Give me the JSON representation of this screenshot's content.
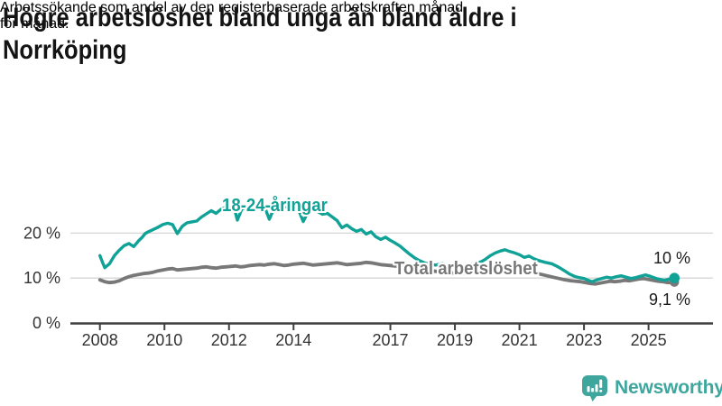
{
  "header": {
    "title": "Högre arbetslöshet bland unga än bland äldre i Norrköping",
    "title_lines": [
      "Högre arbetslöshet bland unga än bland äldre i",
      "Norrköping"
    ],
    "subtitle": "Arbetssökande som andel av den registerbaserade arbetskraften månad för månad.",
    "subtitle_lines": [
      "Arbetssökande som andel av den registerbaserade arbetskraften månad",
      "för månad."
    ]
  },
  "chart_data": {
    "type": "line",
    "title": "Högre arbetslöshet bland unga än bland äldre i Norrköping",
    "subtitle": "Arbetssökande som andel av den registerbaserade arbetskraften månad för månad.",
    "xlabel": "",
    "ylabel": "",
    "xlim": [
      2007.9,
      2026.1
    ],
    "ylim": [
      0,
      27
    ],
    "grid": "horizontal",
    "legend_position": "inline-labels",
    "colors": {
      "young": "#10a296",
      "total": "#787878",
      "grid": "#d6d6d6",
      "axis": "#3f3f3f",
      "tick_text": "#333333"
    },
    "y_ticks": [
      {
        "label": "0 %",
        "value": 0
      },
      {
        "label": "10 %",
        "value": 10
      },
      {
        "label": "20 %",
        "value": 20
      }
    ],
    "x_ticks": [
      {
        "label": "2008",
        "year": 2008
      },
      {
        "label": "2010",
        "year": 2010
      },
      {
        "label": "2012",
        "year": 2012
      },
      {
        "label": "2014",
        "year": 2014
      },
      {
        "label": "2017",
        "year": 2017
      },
      {
        "label": "2019",
        "year": 2019
      },
      {
        "label": "2021",
        "year": 2021
      },
      {
        "label": "2023",
        "year": 2023
      },
      {
        "label": "2025",
        "year": 2025
      }
    ],
    "series_labels": {
      "young": "18-24-åringar",
      "total": "Total arbetslöshet"
    },
    "end_labels": {
      "young": "10 %",
      "total": "9,1 %"
    },
    "end_values": {
      "young": 10.0,
      "total": 9.1
    },
    "series": [
      {
        "key": "total",
        "name": "Total arbetslöshet",
        "color": "#787878",
        "width": 3.8,
        "dot_radius": 5.2,
        "points": [
          [
            2008.0,
            9.6
          ],
          [
            2008.15,
            9.2
          ],
          [
            2008.3,
            9.0
          ],
          [
            2008.45,
            9.1
          ],
          [
            2008.6,
            9.4
          ],
          [
            2008.75,
            9.9
          ],
          [
            2008.9,
            10.3
          ],
          [
            2009.05,
            10.6
          ],
          [
            2009.2,
            10.8
          ],
          [
            2009.35,
            11.0
          ],
          [
            2009.5,
            11.1
          ],
          [
            2009.65,
            11.3
          ],
          [
            2009.8,
            11.6
          ],
          [
            2009.95,
            11.8
          ],
          [
            2010.1,
            12.0
          ],
          [
            2010.25,
            12.1
          ],
          [
            2010.4,
            11.8
          ],
          [
            2010.55,
            11.9
          ],
          [
            2010.7,
            12.0
          ],
          [
            2010.85,
            12.1
          ],
          [
            2011.0,
            12.2
          ],
          [
            2011.15,
            12.4
          ],
          [
            2011.3,
            12.5
          ],
          [
            2011.45,
            12.3
          ],
          [
            2011.6,
            12.2
          ],
          [
            2011.75,
            12.4
          ],
          [
            2011.9,
            12.5
          ],
          [
            2012.05,
            12.6
          ],
          [
            2012.2,
            12.7
          ],
          [
            2012.35,
            12.5
          ],
          [
            2012.5,
            12.6
          ],
          [
            2012.65,
            12.8
          ],
          [
            2012.8,
            12.9
          ],
          [
            2012.95,
            13.0
          ],
          [
            2013.1,
            12.9
          ],
          [
            2013.25,
            13.1
          ],
          [
            2013.4,
            13.2
          ],
          [
            2013.55,
            13.0
          ],
          [
            2013.7,
            12.8
          ],
          [
            2013.85,
            12.9
          ],
          [
            2014.0,
            13.1
          ],
          [
            2014.15,
            13.2
          ],
          [
            2014.3,
            13.3
          ],
          [
            2014.45,
            13.1
          ],
          [
            2014.6,
            12.9
          ],
          [
            2014.75,
            13.0
          ],
          [
            2014.9,
            13.1
          ],
          [
            2015.05,
            13.2
          ],
          [
            2015.2,
            13.3
          ],
          [
            2015.35,
            13.4
          ],
          [
            2015.5,
            13.2
          ],
          [
            2015.65,
            13.0
          ],
          [
            2015.8,
            13.1
          ],
          [
            2015.95,
            13.2
          ],
          [
            2016.1,
            13.3
          ],
          [
            2016.25,
            13.5
          ],
          [
            2016.4,
            13.4
          ],
          [
            2016.55,
            13.2
          ],
          [
            2016.7,
            13.0
          ],
          [
            2016.85,
            12.9
          ],
          [
            2017.0,
            12.8
          ],
          [
            2017.15,
            12.7
          ],
          [
            2017.4,
            12.5
          ],
          [
            2017.7,
            12.2
          ],
          [
            2018.0,
            11.8
          ],
          [
            2018.4,
            11.5
          ],
          [
            2018.8,
            11.2
          ],
          [
            2019.2,
            11.0
          ],
          [
            2019.6,
            11.1
          ],
          [
            2020.0,
            11.8
          ],
          [
            2020.3,
            12.2
          ],
          [
            2020.6,
            12.4
          ],
          [
            2020.9,
            12.1
          ],
          [
            2021.2,
            11.6
          ],
          [
            2021.5,
            11.1
          ],
          [
            2021.8,
            10.6
          ],
          [
            2022.1,
            10.1
          ],
          [
            2022.35,
            9.7
          ],
          [
            2022.6,
            9.4
          ],
          [
            2022.75,
            9.3
          ],
          [
            2022.9,
            9.2
          ],
          [
            2023.05,
            9.0
          ],
          [
            2023.2,
            8.8
          ],
          [
            2023.35,
            8.7
          ],
          [
            2023.5,
            8.9
          ],
          [
            2023.65,
            9.1
          ],
          [
            2023.8,
            9.3
          ],
          [
            2023.95,
            9.2
          ],
          [
            2024.1,
            9.3
          ],
          [
            2024.25,
            9.5
          ],
          [
            2024.4,
            9.4
          ],
          [
            2024.55,
            9.6
          ],
          [
            2024.7,
            9.8
          ],
          [
            2024.85,
            9.9
          ],
          [
            2025.0,
            9.7
          ],
          [
            2025.15,
            9.5
          ],
          [
            2025.3,
            9.3
          ],
          [
            2025.45,
            9.2
          ],
          [
            2025.6,
            9.0
          ],
          [
            2025.7,
            9.0
          ],
          [
            2025.8,
            9.1
          ]
        ]
      },
      {
        "key": "young",
        "name": "18-24-åringar",
        "color": "#10a296",
        "width": 3.4,
        "dot_radius": 5.8,
        "points": [
          [
            2008.0,
            15.0
          ],
          [
            2008.08,
            13.5
          ],
          [
            2008.15,
            12.3
          ],
          [
            2008.3,
            13.2
          ],
          [
            2008.45,
            15.0
          ],
          [
            2008.6,
            16.2
          ],
          [
            2008.75,
            17.2
          ],
          [
            2008.9,
            17.7
          ],
          [
            2009.05,
            17.0
          ],
          [
            2009.2,
            18.3
          ],
          [
            2009.3,
            19.0
          ],
          [
            2009.4,
            19.9
          ],
          [
            2009.5,
            20.3
          ],
          [
            2009.65,
            20.8
          ],
          [
            2009.8,
            21.3
          ],
          [
            2009.95,
            21.9
          ],
          [
            2010.1,
            22.2
          ],
          [
            2010.25,
            21.9
          ],
          [
            2010.4,
            19.9
          ],
          [
            2010.55,
            21.5
          ],
          [
            2010.7,
            22.3
          ],
          [
            2010.85,
            22.5
          ],
          [
            2011.0,
            22.7
          ],
          [
            2011.15,
            23.6
          ],
          [
            2011.3,
            24.3
          ],
          [
            2011.45,
            25.0
          ],
          [
            2011.6,
            24.4
          ],
          [
            2011.75,
            25.3
          ],
          [
            2011.9,
            25.8
          ],
          [
            2012.05,
            25.5
          ],
          [
            2012.15,
            25.9
          ],
          [
            2012.26,
            22.9
          ],
          [
            2012.4,
            25.4
          ],
          [
            2012.55,
            25.8
          ],
          [
            2012.7,
            26.2
          ],
          [
            2012.85,
            25.8
          ],
          [
            2013.0,
            26.0
          ],
          [
            2013.12,
            25.5
          ],
          [
            2013.25,
            23.1
          ],
          [
            2013.4,
            25.6
          ],
          [
            2013.55,
            26.3
          ],
          [
            2013.7,
            26.0
          ],
          [
            2013.85,
            25.7
          ],
          [
            2014.0,
            25.9
          ],
          [
            2014.15,
            25.3
          ],
          [
            2014.3,
            22.6
          ],
          [
            2014.45,
            24.8
          ],
          [
            2014.6,
            25.2
          ],
          [
            2014.75,
            24.8
          ],
          [
            2014.9,
            24.2
          ],
          [
            2015.05,
            24.4
          ],
          [
            2015.2,
            23.6
          ],
          [
            2015.35,
            22.8
          ],
          [
            2015.5,
            21.2
          ],
          [
            2015.65,
            21.8
          ],
          [
            2015.8,
            21.0
          ],
          [
            2015.95,
            20.4
          ],
          [
            2016.1,
            20.8
          ],
          [
            2016.25,
            19.8
          ],
          [
            2016.4,
            20.3
          ],
          [
            2016.55,
            19.2
          ],
          [
            2016.7,
            18.6
          ],
          [
            2016.85,
            19.1
          ],
          [
            2017.0,
            18.4
          ],
          [
            2017.15,
            17.8
          ],
          [
            2017.3,
            17.1
          ],
          [
            2017.45,
            16.2
          ],
          [
            2017.6,
            15.3
          ],
          [
            2017.75,
            14.5
          ],
          [
            2017.9,
            13.9
          ],
          [
            2018.05,
            13.4
          ],
          [
            2018.2,
            13.1
          ],
          [
            2018.4,
            12.9
          ],
          [
            2018.6,
            13.2
          ],
          [
            2018.8,
            12.9
          ],
          [
            2019.0,
            13.1
          ],
          [
            2019.2,
            12.8
          ],
          [
            2019.4,
            13.0
          ],
          [
            2019.6,
            13.2
          ],
          [
            2019.8,
            13.6
          ],
          [
            2019.95,
            14.2
          ],
          [
            2020.1,
            15.0
          ],
          [
            2020.25,
            15.6
          ],
          [
            2020.4,
            16.0
          ],
          [
            2020.55,
            16.3
          ],
          [
            2020.7,
            15.9
          ],
          [
            2020.85,
            15.6
          ],
          [
            2021.0,
            15.2
          ],
          [
            2021.15,
            14.6
          ],
          [
            2021.3,
            14.9
          ],
          [
            2021.45,
            14.3
          ],
          [
            2021.6,
            13.9
          ],
          [
            2021.8,
            13.5
          ],
          [
            2022.0,
            13.2
          ],
          [
            2022.2,
            12.5
          ],
          [
            2022.4,
            11.6
          ],
          [
            2022.55,
            10.9
          ],
          [
            2022.7,
            10.4
          ],
          [
            2022.85,
            10.1
          ],
          [
            2023.0,
            9.9
          ],
          [
            2023.1,
            9.6
          ],
          [
            2023.25,
            9.2
          ],
          [
            2023.4,
            9.6
          ],
          [
            2023.55,
            9.9
          ],
          [
            2023.7,
            10.2
          ],
          [
            2023.85,
            10.0
          ],
          [
            2024.0,
            10.3
          ],
          [
            2024.15,
            10.5
          ],
          [
            2024.3,
            10.2
          ],
          [
            2024.45,
            9.9
          ],
          [
            2024.6,
            10.1
          ],
          [
            2024.75,
            10.4
          ],
          [
            2024.9,
            10.7
          ],
          [
            2025.05,
            10.4
          ],
          [
            2025.2,
            10.0
          ],
          [
            2025.35,
            9.7
          ],
          [
            2025.5,
            9.5
          ],
          [
            2025.65,
            9.8
          ],
          [
            2025.8,
            10.0
          ]
        ]
      }
    ]
  },
  "footer": {
    "brand": "Newsworthy",
    "logo_color": "#3fa69e"
  }
}
